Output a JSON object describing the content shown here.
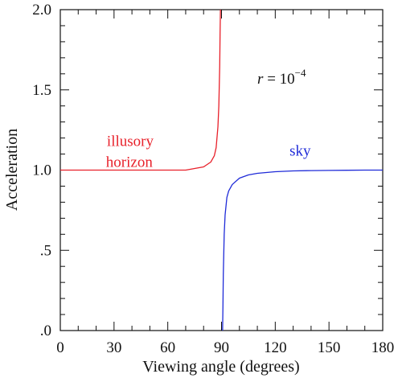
{
  "chart_data": {
    "type": "line",
    "title": "",
    "xlabel": "Viewing angle (degrees)",
    "ylabel": "Acceleration",
    "xlim": [
      0,
      180
    ],
    "ylim": [
      0,
      2
    ],
    "grid": false,
    "x_ticks": [
      0,
      30,
      60,
      90,
      120,
      150,
      180
    ],
    "x_tick_labels": [
      "0",
      "30",
      "60",
      "90",
      "120",
      "150",
      "180"
    ],
    "y_ticks": [
      0,
      0.5,
      1.0,
      1.5,
      2.0
    ],
    "y_tick_labels": [
      ".0",
      ".5",
      "1.0",
      "1.5",
      "2.0"
    ],
    "annotation": {
      "var": "r",
      "eq": " = 10",
      "exp": "−4",
      "r_value": 0.0001,
      "x": 110,
      "y": 1.54
    },
    "series": [
      {
        "name": "illusory",
        "name_line2": "horizon",
        "color": "#e8202a",
        "x": [
          0,
          10,
          20,
          30,
          40,
          50,
          60,
          70,
          75,
          80,
          84,
          86,
          87,
          88,
          88.5,
          89,
          89.2,
          89.4
        ],
        "values": [
          1.0,
          1.0,
          1.0,
          1.0,
          1.0,
          1.0,
          1.0,
          1.0,
          1.01,
          1.02,
          1.05,
          1.09,
          1.14,
          1.27,
          1.4,
          1.65,
          1.85,
          2.0
        ],
        "label_x": 26,
        "label_y": 1.15
      },
      {
        "name": "sky",
        "color": "#1f2bd8",
        "x": [
          90.6,
          90.8,
          91,
          91.5,
          92,
          93,
          94,
          96,
          100,
          105,
          110,
          120,
          130,
          140,
          150,
          160,
          170,
          180
        ],
        "values": [
          0.0,
          0.15,
          0.35,
          0.6,
          0.72,
          0.83,
          0.87,
          0.91,
          0.95,
          0.97,
          0.98,
          0.99,
          0.995,
          0.997,
          0.998,
          0.999,
          1.0,
          1.0
        ],
        "label_x": 128,
        "label_y": 1.09
      }
    ]
  }
}
